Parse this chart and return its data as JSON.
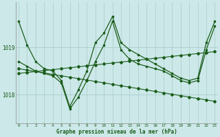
{
  "xlabel": "Graphe pression niveau de la mer (hPa)",
  "background_color": "#cce8e8",
  "grid_color": "#aacccc",
  "line_color": "#1a5c1a",
  "text_color": "#1a5c1a",
  "x_ticks": [
    0,
    1,
    2,
    3,
    4,
    5,
    6,
    7,
    8,
    9,
    10,
    11,
    12,
    13,
    14,
    15,
    16,
    17,
    18,
    19,
    20,
    21,
    22,
    23
  ],
  "y_ticks": [
    1018,
    1019
  ],
  "ylim": [
    1017.4,
    1019.95
  ],
  "xlim": [
    -0.3,
    23.3
  ],
  "series": [
    {
      "x": [
        0,
        1,
        2,
        3,
        4,
        5,
        6,
        7,
        8,
        9,
        10,
        11,
        12,
        13,
        14,
        15,
        16,
        17,
        18,
        19,
        20,
        21,
        22,
        23
      ],
      "y": [
        1019.55,
        1019.05,
        1018.7,
        1018.55,
        1018.5,
        1018.3,
        1017.75,
        1018.1,
        1018.5,
        1019.1,
        1019.3,
        1019.65,
        1019.1,
        1018.95,
        1018.85,
        1018.75,
        1018.65,
        1018.55,
        1018.45,
        1018.35,
        1018.3,
        1018.35,
        1019.1,
        1019.55
      ],
      "lw": 0.9,
      "marker": "s",
      "ms": 1.8
    },
    {
      "x": [
        0,
        1,
        2,
        3,
        4,
        5,
        6,
        7,
        8,
        9,
        10,
        11,
        12,
        13,
        14,
        15,
        16,
        17,
        18,
        19,
        20,
        21,
        22,
        23
      ],
      "y": [
        1018.7,
        1018.6,
        1018.5,
        1018.45,
        1018.4,
        1018.25,
        1017.7,
        1017.95,
        1018.3,
        1018.7,
        1019.05,
        1019.55,
        1018.95,
        1018.75,
        1018.65,
        1018.6,
        1018.55,
        1018.5,
        1018.4,
        1018.3,
        1018.25,
        1018.3,
        1018.95,
        1019.45
      ],
      "lw": 0.9,
      "marker": "s",
      "ms": 1.8
    },
    {
      "x": [
        0,
        1,
        2,
        3,
        4,
        5,
        6,
        7,
        8,
        9,
        10,
        11,
        12,
        13,
        14,
        15,
        16,
        17,
        18,
        19,
        20,
        21,
        22,
        23
      ],
      "y": [
        1018.55,
        1018.52,
        1018.49,
        1018.46,
        1018.43,
        1018.4,
        1018.37,
        1018.34,
        1018.31,
        1018.28,
        1018.25,
        1018.22,
        1018.19,
        1018.16,
        1018.13,
        1018.1,
        1018.07,
        1018.04,
        1018.01,
        1017.98,
        1017.95,
        1017.92,
        1017.89,
        1017.86
      ],
      "lw": 0.8,
      "marker": "D",
      "ms": 2.0
    },
    {
      "x": [
        0,
        1,
        2,
        3,
        4,
        5,
        6,
        7,
        8,
        9,
        10,
        11,
        12,
        13,
        14,
        15,
        16,
        17,
        18,
        19,
        20,
        21,
        22,
        23
      ],
      "y": [
        1018.45,
        1018.47,
        1018.49,
        1018.51,
        1018.53,
        1018.55,
        1018.57,
        1018.59,
        1018.61,
        1018.63,
        1018.65,
        1018.67,
        1018.69,
        1018.71,
        1018.73,
        1018.75,
        1018.77,
        1018.79,
        1018.81,
        1018.83,
        1018.85,
        1018.87,
        1018.89,
        1018.91
      ],
      "lw": 0.8,
      "marker": "D",
      "ms": 2.0
    }
  ]
}
